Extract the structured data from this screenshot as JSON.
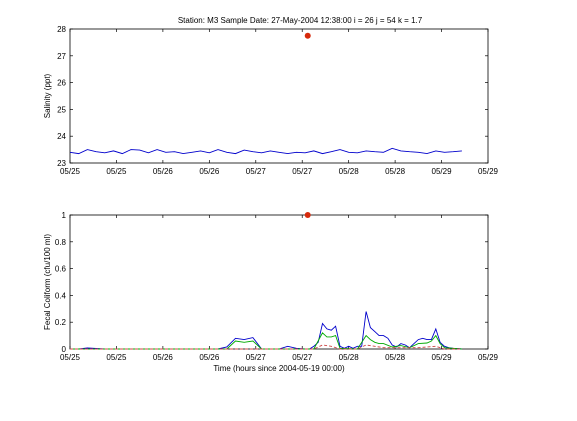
{
  "title": "Station: M3  Sample Date: 27-May-2004 12:38:00   i = 26 j = 54 k = 1.7",
  "chart_data": [
    {
      "type": "line",
      "ylabel": "Salinity (ppt)",
      "xlabel": "",
      "x_tick_labels": [
        "05/25",
        "05/25",
        "05/26",
        "05/26",
        "05/27",
        "05/27",
        "05/28",
        "05/28",
        "05/29",
        "05/29"
      ],
      "xlim_hours": [
        144,
        240
      ],
      "xlim": [
        144,
        240
      ],
      "ylim": [
        23,
        28
      ],
      "y_ticks": [
        "23",
        "24",
        "25",
        "26",
        "27",
        "28"
      ],
      "marker": {
        "x": 198.6,
        "y": 27.75,
        "color": "#d62a0c"
      },
      "series": [
        {
          "color": "#0000cc",
          "x": [
            144,
            146,
            148,
            150,
            152,
            154,
            156,
            158,
            160,
            162,
            164,
            166,
            168,
            170,
            172,
            174,
            176,
            178,
            180,
            182,
            184,
            186,
            188,
            190,
            192,
            194,
            196,
            198,
            200,
            202,
            204,
            206,
            208,
            210,
            212,
            214,
            216,
            218,
            220,
            222,
            224,
            226,
            228,
            230,
            232,
            234
          ],
          "y": [
            23.4,
            23.35,
            23.5,
            23.42,
            23.38,
            23.45,
            23.35,
            23.5,
            23.48,
            23.38,
            23.5,
            23.4,
            23.42,
            23.35,
            23.4,
            23.45,
            23.38,
            23.5,
            23.4,
            23.35,
            23.48,
            23.42,
            23.38,
            23.45,
            23.4,
            23.35,
            23.4,
            23.38,
            23.45,
            23.35,
            23.42,
            23.5,
            23.4,
            23.38,
            23.45,
            23.42,
            23.4,
            23.55,
            23.45,
            23.42,
            23.4,
            23.35,
            23.45,
            23.4,
            23.42,
            23.45
          ]
        }
      ]
    },
    {
      "type": "line",
      "ylabel": "Fecal Coliform (cfu/100 ml)",
      "xlabel": "Time (hours since 2004-05-19 00:00)",
      "x_tick_labels": [
        "05/25",
        "05/25",
        "05/26",
        "05/26",
        "05/27",
        "05/27",
        "05/28",
        "05/28",
        "05/29",
        "05/29"
      ],
      "xlim_hours": [
        144,
        240
      ],
      "xlim": [
        144,
        240
      ],
      "ylim": [
        0,
        1
      ],
      "y_ticks": [
        "0",
        "0.2",
        "0.4",
        "0.6",
        "0.8",
        "1"
      ],
      "marker": {
        "x": 198.6,
        "y": 1.0,
        "color": "#d62a0c"
      },
      "series": [
        {
          "color": "#0000cc",
          "style": "solid",
          "x": [
            144,
            146,
            148,
            150,
            152,
            156,
            160,
            164,
            168,
            172,
            176,
            178,
            180,
            182,
            184,
            186,
            188,
            190,
            192,
            194,
            196,
            198,
            199,
            200,
            201,
            202,
            203,
            204,
            205,
            206,
            207,
            208,
            209,
            210,
            211,
            212,
            213,
            214,
            215,
            216,
            217,
            218,
            219,
            220,
            221,
            222,
            223,
            224,
            225,
            226,
            227,
            228,
            229,
            230,
            231,
            232,
            233,
            234
          ],
          "y": [
            0,
            0,
            0.008,
            0.004,
            0,
            0,
            0,
            0,
            0,
            0,
            0,
            0,
            0.015,
            0.08,
            0.07,
            0.085,
            0,
            0,
            0,
            0.02,
            0.005,
            0,
            0,
            0.02,
            0.05,
            0.19,
            0.15,
            0.14,
            0.17,
            0.02,
            0.005,
            0.02,
            0.005,
            0.02,
            0.02,
            0.28,
            0.16,
            0.13,
            0.1,
            0.1,
            0.08,
            0.03,
            0.015,
            0.04,
            0.03,
            0.01,
            0.04,
            0.07,
            0.08,
            0.07,
            0.07,
            0.15,
            0.05,
            0.02,
            0.01,
            0.005,
            0.004,
            0
          ]
        },
        {
          "color": "#00aa00",
          "style": "solid",
          "x": [
            144,
            180,
            182,
            184,
            186,
            188,
            200,
            202,
            203,
            204,
            205,
            206,
            210,
            212,
            213,
            214,
            215,
            216,
            218,
            220,
            222,
            224,
            226,
            227,
            228,
            229,
            230,
            234
          ],
          "y": [
            0,
            0,
            0.06,
            0.05,
            0.06,
            0,
            0,
            0.12,
            0.09,
            0.09,
            0.1,
            0.005,
            0,
            0.1,
            0.07,
            0.05,
            0.04,
            0.04,
            0.015,
            0.025,
            0.01,
            0.04,
            0.045,
            0.06,
            0.1,
            0.04,
            0.01,
            0
          ]
        },
        {
          "color": "#cc4444",
          "style": "dashed",
          "x": [
            144,
            200,
            202,
            204,
            206,
            210,
            212,
            214,
            216,
            224,
            226,
            228,
            230,
            234
          ],
          "y": [
            0,
            0,
            0.03,
            0.02,
            0,
            0,
            0.03,
            0.02,
            0.01,
            0.01,
            0.015,
            0.02,
            0,
            0
          ]
        }
      ]
    }
  ]
}
